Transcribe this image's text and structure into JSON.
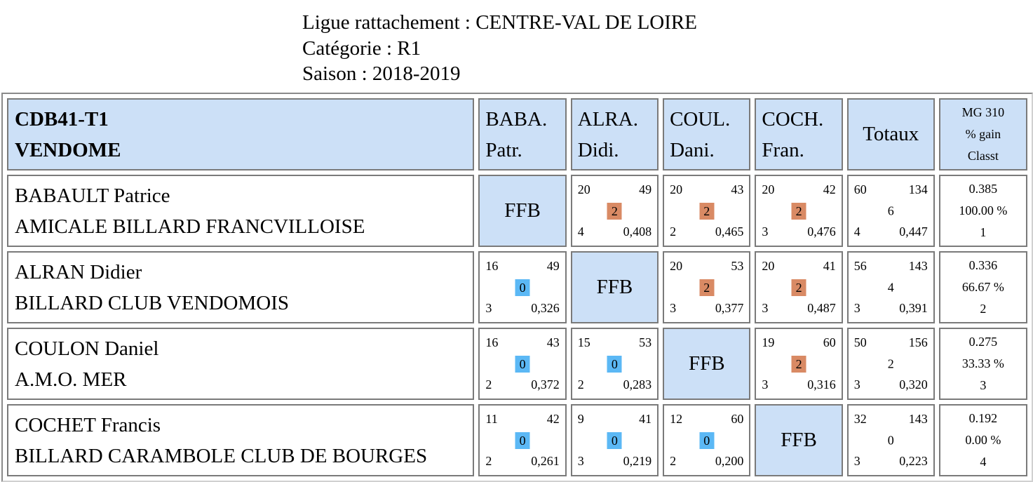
{
  "header": {
    "ligue": "Ligue rattachement : CENTRE-VAL DE LOIRE",
    "categorie": "Catégorie : R1",
    "saison": "Saison : 2018-2019"
  },
  "table": {
    "team_code": "CDB41-T1",
    "team_name": "VENDOME",
    "columns": [
      {
        "line1": "BABA.",
        "line2": "Patr."
      },
      {
        "line1": "ALRA.",
        "line2": "Didi."
      },
      {
        "line1": "COUL.",
        "line2": "Dani."
      },
      {
        "line1": "COCH.",
        "line2": "Fran."
      }
    ],
    "totals_header": "Totaux",
    "mg_header": {
      "line1": "MG 310",
      "line2": "% gain",
      "line3": "Classt"
    },
    "ffb_label": "FFB",
    "rows": [
      {
        "name": "BABAULT Patrice",
        "club": "AMICALE BILLARD FRANCVILLOISE",
        "cells": [
          null,
          {
            "tl": "20",
            "tr": "49",
            "pts": "2",
            "bl": "4",
            "br": "0,408"
          },
          {
            "tl": "20",
            "tr": "43",
            "pts": "2",
            "bl": "2",
            "br": "0,465"
          },
          {
            "tl": "20",
            "tr": "42",
            "pts": "2",
            "bl": "3",
            "br": "0,476"
          }
        ],
        "total": {
          "tl": "60",
          "tr": "134",
          "mid": "6",
          "bl": "4",
          "br": "0,447"
        },
        "mg": {
          "avg": "0.385",
          "gain": "100.00 %",
          "rank": "1"
        }
      },
      {
        "name": "ALRAN Didier",
        "club": "BILLARD CLUB VENDOMOIS",
        "cells": [
          {
            "tl": "16",
            "tr": "49",
            "pts": "0",
            "bl": "3",
            "br": "0,326"
          },
          null,
          {
            "tl": "20",
            "tr": "53",
            "pts": "2",
            "bl": "3",
            "br": "0,377"
          },
          {
            "tl": "20",
            "tr": "41",
            "pts": "2",
            "bl": "3",
            "br": "0,487"
          }
        ],
        "total": {
          "tl": "56",
          "tr": "143",
          "mid": "4",
          "bl": "3",
          "br": "0,391"
        },
        "mg": {
          "avg": "0.336",
          "gain": "66.67 %",
          "rank": "2"
        }
      },
      {
        "name": "COULON Daniel",
        "club": "A.M.O. MER",
        "cells": [
          {
            "tl": "16",
            "tr": "43",
            "pts": "0",
            "bl": "2",
            "br": "0,372"
          },
          {
            "tl": "15",
            "tr": "53",
            "pts": "0",
            "bl": "2",
            "br": "0,283"
          },
          null,
          {
            "tl": "19",
            "tr": "60",
            "pts": "2",
            "bl": "3",
            "br": "0,316"
          }
        ],
        "total": {
          "tl": "50",
          "tr": "156",
          "mid": "2",
          "bl": "3",
          "br": "0,320"
        },
        "mg": {
          "avg": "0.275",
          "gain": "33.33 %",
          "rank": "3"
        }
      },
      {
        "name": "COCHET Francis",
        "club": "BILLARD CARAMBOLE CLUB DE BOURGES",
        "cells": [
          {
            "tl": "11",
            "tr": "42",
            "pts": "0",
            "bl": "2",
            "br": "0,261"
          },
          {
            "tl": "9",
            "tr": "41",
            "pts": "0",
            "bl": "3",
            "br": "0,219"
          },
          {
            "tl": "12",
            "tr": "60",
            "pts": "0",
            "bl": "2",
            "br": "0,200"
          },
          null
        ],
        "total": {
          "tl": "32",
          "tr": "143",
          "mid": "0",
          "bl": "3",
          "br": "0,223"
        },
        "mg": {
          "avg": "0.192",
          "gain": "0.00 %",
          "rank": "4"
        }
      }
    ]
  },
  "colors": {
    "header_bg": "#cce0f7",
    "win_badge": "#d98a64",
    "loss_badge": "#5bb8f5",
    "border": "#7a7a7a"
  }
}
